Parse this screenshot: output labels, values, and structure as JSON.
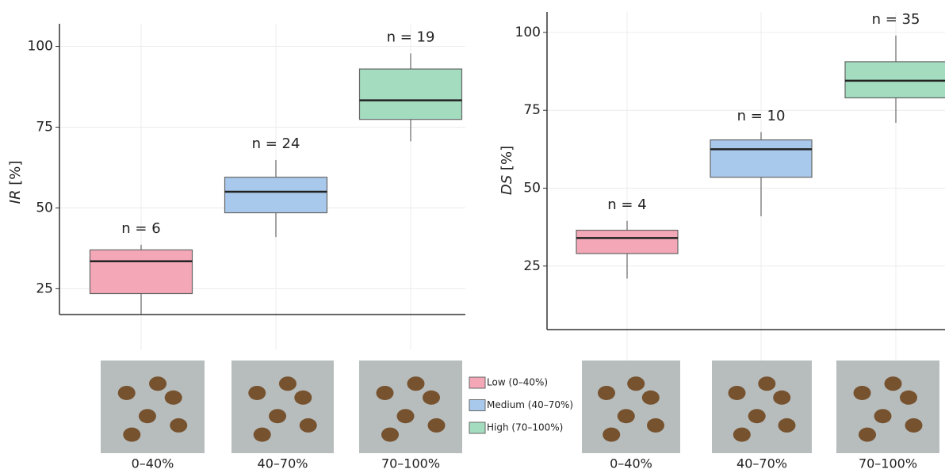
{
  "chart_data": [
    {
      "type": "box",
      "ylabel_var": "IR",
      "ylabel_unit": "[%]",
      "categories": [
        "0–40%",
        "40–70%",
        "70–100%"
      ],
      "ylim": [
        17,
        107
      ],
      "yticks": [
        25,
        50,
        75,
        100
      ],
      "grid": true,
      "boxes": [
        {
          "name": "Low (0–40%)",
          "color": "#f4a7b6",
          "whislo": 17,
          "q1": 23.5,
          "med": 33.5,
          "q3": 37,
          "whishi": 38.6,
          "label": "n = 6"
        },
        {
          "name": "Medium (40–70%)",
          "color": "#a8c9ec",
          "whislo": 41,
          "q1": 48.5,
          "med": 55,
          "q3": 59.5,
          "whishi": 64.8,
          "label": "n = 24"
        },
        {
          "name": "High (70–100%)",
          "color": "#a3dcbf",
          "whislo": 70.6,
          "q1": 77.4,
          "med": 83.3,
          "q3": 93,
          "whishi": 97.8,
          "label": "n = 19"
        }
      ]
    },
    {
      "type": "box",
      "ylabel_var": "DS",
      "ylabel_unit": "[%]",
      "categories": [
        "0–40%",
        "40–70%",
        "70–100%"
      ],
      "ylim": [
        4.6,
        106.6
      ],
      "yticks": [
        25,
        50,
        75,
        100
      ],
      "grid": true,
      "boxes": [
        {
          "color": "#f4a7b6",
          "whislo": 21,
          "q1": 29,
          "med": 34,
          "q3": 36.5,
          "whishi": 39.5,
          "label": "n = 4"
        },
        {
          "color": "#a8c9ec",
          "whislo": 41,
          "q1": 53.5,
          "med": 62.5,
          "q3": 65.5,
          "whishi": 68,
          "label": "n = 10"
        },
        {
          "color": "#a3dcbf",
          "whislo": 71,
          "q1": 79,
          "med": 84.5,
          "q3": 90.6,
          "whishi": 99,
          "label": "n = 35"
        }
      ]
    }
  ]
}
